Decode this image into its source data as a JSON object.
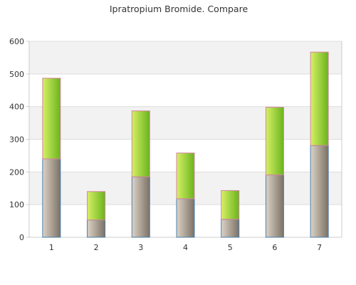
{
  "chart_data": {
    "type": "bar",
    "stacked": true,
    "title": "Ipratropium Bromide. Compare",
    "xlabel": "",
    "ylabel": "",
    "categories": [
      "1",
      "2",
      "3",
      "4",
      "5",
      "6",
      "7"
    ],
    "series": [
      {
        "values": [
          240,
          53,
          185,
          118,
          55,
          191,
          281
        ]
      },
      {
        "values": [
          247,
          87,
          202,
          140,
          88,
          207,
          286
        ]
      }
    ],
    "ylim": [
      0,
      600
    ],
    "yticks": [
      0,
      100,
      200,
      300,
      400,
      500,
      600
    ],
    "grid": true,
    "banded_background": true,
    "legend": "none",
    "colors": {
      "series_0_light": "#dcd2c6",
      "series_0_dark": "#7b7265",
      "series_0_edge": "#4a7fae",
      "series_1_light": "#d6f064",
      "series_1_dark": "#6ab41e",
      "series_1_edge": "#d4849c",
      "band": "#f2f2f2",
      "grid": "#dddddd",
      "axis": "#cccccc",
      "text": "#333333"
    }
  }
}
